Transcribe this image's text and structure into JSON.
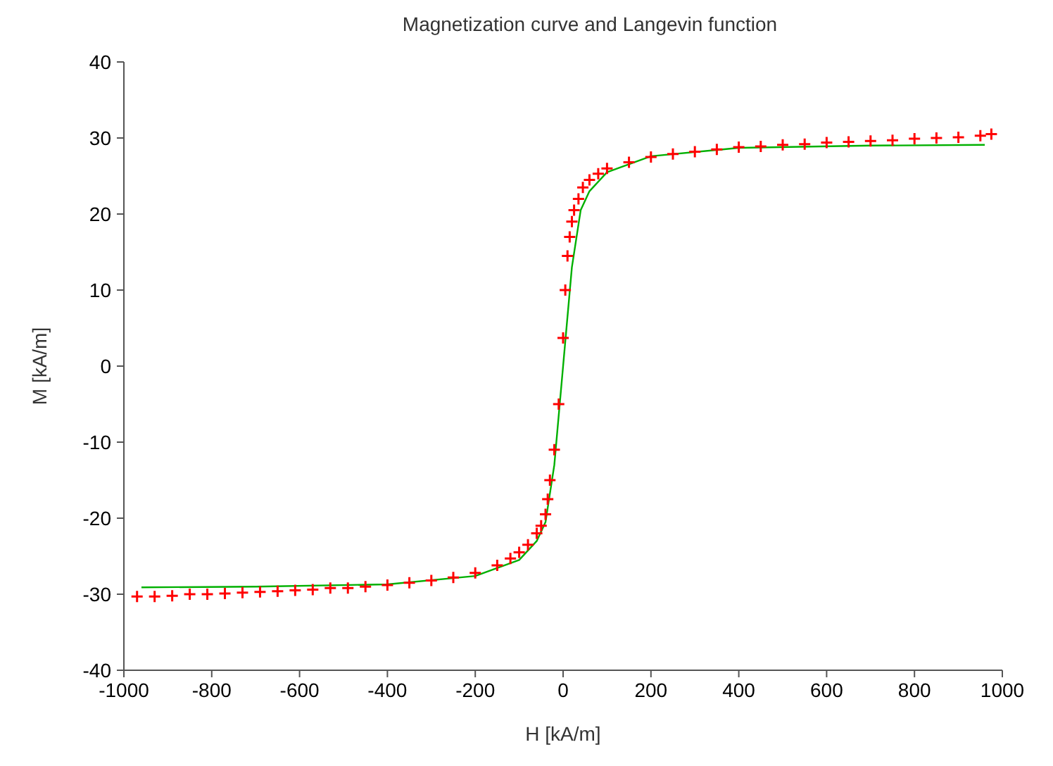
{
  "chart_data": {
    "type": "scatter",
    "title": "Magnetization curve and Langevin function",
    "xlabel": "H [kA/m]",
    "ylabel": "M [kA/m]",
    "xlim": [
      -1000,
      1000
    ],
    "xticks": [
      -1000,
      -800,
      -600,
      -400,
      -200,
      0,
      200,
      400,
      600,
      800,
      1000
    ],
    "ylim": [
      -40,
      40
    ],
    "yticks": [
      -40,
      -30,
      -20,
      -10,
      0,
      10,
      20,
      30,
      40
    ],
    "grid": false,
    "legend": false,
    "marker": "cross",
    "series": [
      {
        "color": "#ff0000",
        "x": [
          -970,
          -930,
          -890,
          -850,
          -810,
          -770,
          -730,
          -690,
          -650,
          -610,
          -570,
          -530,
          -490,
          -450,
          -400,
          -350,
          -300,
          -250,
          -200,
          -150,
          -120,
          -100,
          -80,
          -60,
          -50,
          -40,
          -35,
          -30,
          -20,
          -10,
          0,
          5,
          10,
          15,
          20,
          25,
          35,
          45,
          60,
          80,
          100,
          150,
          200,
          250,
          300,
          350,
          400,
          450,
          500,
          550,
          600,
          650,
          700,
          750,
          800,
          850,
          900,
          950,
          975
        ],
        "values": [
          -30.3,
          -30.3,
          -30.2,
          -30.0,
          -30.0,
          -29.9,
          -29.8,
          -29.7,
          -29.6,
          -29.5,
          -29.4,
          -29.2,
          -29.2,
          -29.0,
          -28.8,
          -28.5,
          -28.2,
          -27.8,
          -27.2,
          -26.2,
          -25.3,
          -24.5,
          -23.5,
          -22,
          -21,
          -19.5,
          -17.5,
          -15,
          -11,
          -5,
          3.7,
          10,
          14.5,
          17,
          19,
          20.5,
          22,
          23.5,
          24.5,
          25.3,
          26,
          26.8,
          27.5,
          27.9,
          28.2,
          28.5,
          28.8,
          28.9,
          29.1,
          29.2,
          29.4,
          29.5,
          29.6,
          29.7,
          29.9,
          30.0,
          30.1,
          30.3,
          30.5
        ]
      },
      {
        "type": "line",
        "color": "#00b000",
        "marker": "none",
        "x": [
          -960,
          -700,
          -400,
          -200,
          -100,
          -60,
          -40,
          -20,
          0,
          20,
          40,
          60,
          100,
          200,
          400,
          700,
          960
        ],
        "values": [
          -29.1,
          -29.0,
          -28.7,
          -27.6,
          -25.5,
          -23,
          -20.5,
          -13,
          0,
          13,
          20.5,
          23,
          25.5,
          27.6,
          28.7,
          29.0,
          29.1
        ]
      }
    ]
  }
}
